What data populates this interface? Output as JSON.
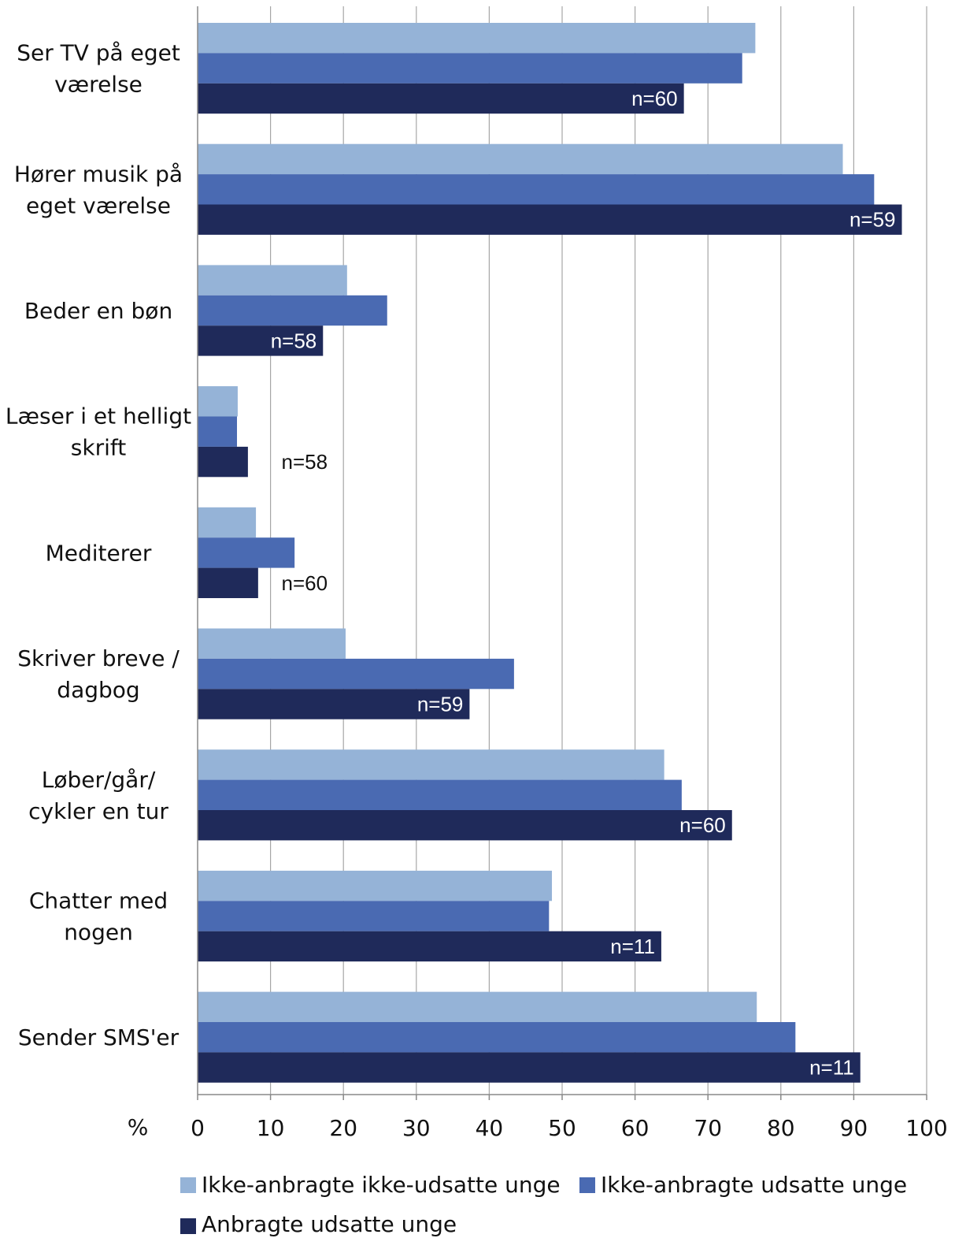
{
  "chart_data": {
    "type": "bar",
    "orientation": "horizontal",
    "xlabel": "%",
    "xlim": [
      0,
      100
    ],
    "xticks": [
      "0",
      "10",
      "20",
      "30",
      "40",
      "50",
      "60",
      "70",
      "80",
      "90",
      "100"
    ],
    "grid": true,
    "legend_position": "bottom",
    "categories": [
      [
        "Ser TV på eget",
        "værelse"
      ],
      [
        "Hører musik på",
        "eget værelse"
      ],
      [
        "Beder en bøn"
      ],
      [
        "Læser i et helligt",
        "skrift"
      ],
      [
        "Mediterer"
      ],
      [
        "Skriver breve /",
        "dagbog"
      ],
      [
        "Løber/går/",
        "cykler en tur"
      ],
      [
        "Chatter med",
        "nogen"
      ],
      [
        "Sender SMS'er"
      ]
    ],
    "series": [
      {
        "name": "Ikke-anbragte ikke-udsatte unge",
        "color": "#95b3d7",
        "values": [
          76.5,
          88.5,
          20.5,
          5.5,
          8,
          20.3,
          64,
          48.6,
          76.7
        ]
      },
      {
        "name": "Ikke-anbragte udsatte unge",
        "color": "#4a6ab2",
        "values": [
          74.7,
          92.8,
          26,
          5.4,
          13.3,
          43.4,
          66.4,
          48.2,
          82
        ]
      },
      {
        "name": "Anbragte udsatte unge",
        "color": "#1f2a5a",
        "values": [
          66.7,
          96.6,
          17.2,
          6.9,
          8.3,
          37.3,
          73.3,
          63.6,
          90.9
        ]
      }
    ],
    "n_labels": [
      "n=60",
      "n=59",
      "n=58",
      "n=58",
      "n=60",
      "n=59",
      "n=60",
      "n=11",
      "n=11"
    ]
  }
}
